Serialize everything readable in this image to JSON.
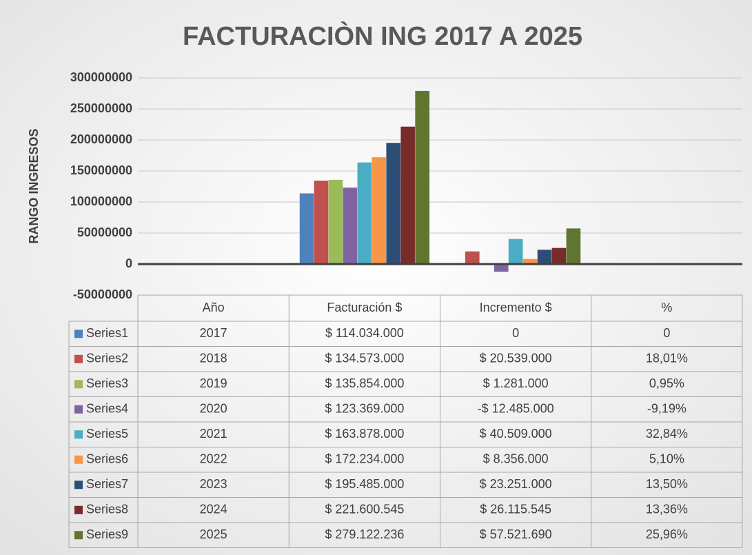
{
  "chart_data": {
    "type": "bar",
    "title": "FACTURACIÒN ING 2017 A 2025",
    "y_label": "RANGO INGRESOS",
    "categories": [
      "Año",
      "Facturación $",
      "Incremento $",
      "%"
    ],
    "ylim": [
      -50000000,
      300000000
    ],
    "yticks": [
      -50000000,
      0,
      50000000,
      100000000,
      150000000,
      200000000,
      250000000,
      300000000
    ],
    "grid": true,
    "legend": "table",
    "series": [
      {
        "name": "Series1",
        "color": "#4f81bd",
        "values": [
          2017,
          114034000,
          0,
          0
        ],
        "value_labels": [
          "2017",
          "$ 114.034.000",
          "0",
          "0"
        ]
      },
      {
        "name": "Series2",
        "color": "#c0504d",
        "values": [
          2018,
          134573000,
          20539000,
          18.01
        ],
        "value_labels": [
          "2018",
          "$ 134.573.000",
          "$ 20.539.000",
          "18,01%"
        ]
      },
      {
        "name": "Series3",
        "color": "#9bbb59",
        "values": [
          2019,
          135854000,
          1281000,
          0.95
        ],
        "value_labels": [
          "2019",
          "$ 135.854.000",
          "$ 1.281.000",
          "0,95%"
        ]
      },
      {
        "name": "Series4",
        "color": "#8064a2",
        "values": [
          2020,
          123369000,
          -12485000,
          -9.19
        ],
        "value_labels": [
          "2020",
          "$ 123.369.000",
          "-$ 12.485.000",
          "-9,19%"
        ]
      },
      {
        "name": "Series5",
        "color": "#4bacc6",
        "values": [
          2021,
          163878000,
          40509000,
          32.84
        ],
        "value_labels": [
          "2021",
          "$ 163.878.000",
          "$ 40.509.000",
          "32,84%"
        ]
      },
      {
        "name": "Series6",
        "color": "#f79646",
        "values": [
          2022,
          172234000,
          8356000,
          5.1
        ],
        "value_labels": [
          "2022",
          "$ 172.234.000",
          "$ 8.356.000",
          "5,10%"
        ]
      },
      {
        "name": "Series7",
        "color": "#2c4d75",
        "values": [
          2023,
          195485000,
          23251000,
          13.5
        ],
        "value_labels": [
          "2023",
          "$ 195.485.000",
          "$ 23.251.000",
          "13,50%"
        ]
      },
      {
        "name": "Series8",
        "color": "#772c2a",
        "values": [
          2024,
          221600545,
          26115545,
          13.36
        ],
        "value_labels": [
          "2024",
          "$ 221.600.545",
          "$ 26.115.545",
          "13,36%"
        ]
      },
      {
        "name": "Series9",
        "color": "#5f7530",
        "values": [
          2025,
          279122236,
          57521690,
          25.96
        ],
        "value_labels": [
          "2025",
          "$ 279.122.236",
          "$ 57.521.690",
          "25,96%"
        ]
      }
    ]
  }
}
